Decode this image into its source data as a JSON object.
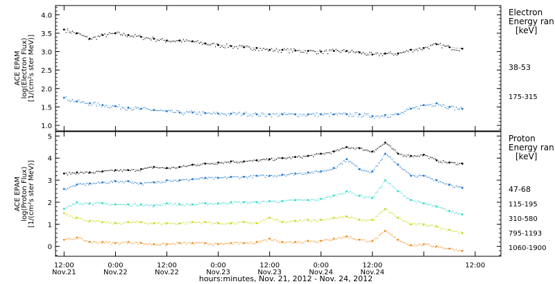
{
  "chart_data": [
    {
      "type": "scatter",
      "ylabel_lines": [
        "ACE EPAM",
        "log(Electron Flux)",
        "[1/(cm²s ster MeV)]"
      ],
      "ylim": [
        0.85,
        4.25
      ],
      "yticks": [
        "1.0",
        "1.5",
        "2.0",
        "2.5",
        "3.0",
        "3.5",
        "4.0"
      ],
      "ytick_values": [
        1.0,
        1.5,
        2.0,
        2.5,
        3.0,
        3.5,
        4.0
      ],
      "legend_title": [
        "Electron",
        "Energy ran",
        "[keV]"
      ],
      "series": [
        {
          "name": "38-53",
          "color": "#000000",
          "x": [
            0,
            3,
            6,
            9,
            12,
            15,
            18,
            21,
            24,
            27,
            30,
            33,
            36,
            39,
            42,
            45,
            48,
            51,
            54,
            57,
            60,
            63,
            66,
            69,
            72,
            75,
            78,
            81,
            84,
            87,
            90,
            93
          ],
          "values": [
            3.6,
            3.5,
            3.35,
            3.45,
            3.5,
            3.45,
            3.4,
            3.35,
            3.3,
            3.3,
            3.28,
            3.22,
            3.18,
            3.15,
            3.12,
            3.1,
            3.05,
            3.05,
            3.03,
            3.02,
            3.0,
            3.02,
            3.02,
            2.98,
            2.92,
            2.95,
            2.95,
            3.05,
            3.1,
            3.2,
            3.12,
            3.08
          ]
        },
        {
          "name": "175-315",
          "color": "#1a73c8",
          "x": [
            0,
            3,
            6,
            9,
            12,
            15,
            18,
            21,
            24,
            27,
            30,
            33,
            36,
            39,
            42,
            45,
            48,
            51,
            54,
            57,
            60,
            63,
            66,
            69,
            72,
            75,
            78,
            81,
            84,
            87,
            90,
            93
          ],
          "values": [
            1.75,
            1.65,
            1.6,
            1.55,
            1.52,
            1.48,
            1.45,
            1.42,
            1.38,
            1.35,
            1.35,
            1.33,
            1.32,
            1.32,
            1.32,
            1.3,
            1.3,
            1.3,
            1.3,
            1.3,
            1.3,
            1.3,
            1.3,
            1.3,
            1.25,
            1.28,
            1.3,
            1.45,
            1.55,
            1.6,
            1.5,
            1.45
          ]
        }
      ]
    },
    {
      "type": "scatter",
      "ylabel_lines": [
        "ACE EPAM",
        "log(Proton Flux)",
        "[1/(cm²s ster MeV)]"
      ],
      "ylim": [
        -0.45,
        5.2
      ],
      "yticks": [
        "0",
        "1",
        "2",
        "3",
        "4",
        "5"
      ],
      "ytick_values": [
        0,
        1,
        2,
        3,
        4,
        5
      ],
      "legend_title": [
        "Proton",
        "Energy ran",
        "[keV]"
      ],
      "series": [
        {
          "name": "47-68",
          "color": "#000000",
          "x": [
            0,
            3,
            6,
            9,
            12,
            15,
            18,
            21,
            24,
            27,
            30,
            33,
            36,
            39,
            42,
            45,
            48,
            51,
            54,
            57,
            60,
            63,
            66,
            69,
            72,
            75,
            78,
            81,
            84,
            87,
            90,
            93
          ],
          "values": [
            3.3,
            3.35,
            3.35,
            3.4,
            3.45,
            3.45,
            3.5,
            3.6,
            3.55,
            3.6,
            3.7,
            3.75,
            3.8,
            3.85,
            3.85,
            3.9,
            3.95,
            4.0,
            4.05,
            4.1,
            4.2,
            4.3,
            4.5,
            4.45,
            4.3,
            4.7,
            4.2,
            4.1,
            4.15,
            3.9,
            3.8,
            3.75
          ]
        },
        {
          "name": "115-195",
          "color": "#1a73c8",
          "x": [
            0,
            3,
            6,
            9,
            12,
            15,
            18,
            21,
            24,
            27,
            30,
            33,
            36,
            39,
            42,
            45,
            48,
            51,
            54,
            57,
            60,
            63,
            66,
            69,
            72,
            75,
            78,
            81,
            84,
            87,
            90,
            93
          ],
          "values": [
            2.6,
            2.8,
            2.85,
            2.9,
            2.95,
            2.95,
            2.85,
            2.9,
            3.0,
            3.0,
            3.05,
            3.1,
            3.1,
            3.15,
            3.15,
            3.2,
            3.2,
            3.25,
            3.3,
            3.35,
            3.4,
            3.55,
            3.95,
            3.5,
            3.4,
            4.2,
            3.7,
            3.2,
            3.2,
            3.0,
            2.8,
            2.65
          ]
        },
        {
          "name": "310-580",
          "color": "#2ad9c8",
          "x": [
            0,
            3,
            6,
            9,
            12,
            15,
            18,
            21,
            24,
            27,
            30,
            33,
            36,
            39,
            42,
            45,
            48,
            51,
            54,
            57,
            60,
            63,
            66,
            69,
            72,
            75,
            78,
            81,
            84,
            87,
            90,
            93
          ],
          "values": [
            1.7,
            2.0,
            1.95,
            1.95,
            1.9,
            1.9,
            1.9,
            1.85,
            1.95,
            1.9,
            1.9,
            1.95,
            1.95,
            2.0,
            2.0,
            2.0,
            2.05,
            2.05,
            2.1,
            2.1,
            2.15,
            2.3,
            2.5,
            2.3,
            2.2,
            3.0,
            2.5,
            2.1,
            1.95,
            1.8,
            1.6,
            1.45
          ]
        },
        {
          "name": "795-1193",
          "color": "#c6d812",
          "x": [
            0,
            3,
            6,
            9,
            12,
            15,
            18,
            21,
            24,
            27,
            30,
            33,
            36,
            39,
            42,
            45,
            48,
            51,
            54,
            57,
            60,
            63,
            66,
            69,
            72,
            75,
            78,
            81,
            84,
            87,
            90,
            93
          ],
          "values": [
            1.5,
            1.3,
            1.15,
            1.1,
            1.05,
            1.1,
            1.1,
            1.05,
            1.05,
            1.05,
            1.1,
            1.1,
            1.05,
            1.05,
            1.1,
            1.05,
            1.3,
            1.1,
            1.15,
            1.2,
            1.2,
            1.3,
            1.35,
            1.2,
            1.2,
            1.7,
            1.3,
            1.0,
            1.0,
            0.9,
            0.75,
            0.6
          ]
        },
        {
          "name": "1060-1900",
          "color": "#f08c1a",
          "x": [
            0,
            3,
            6,
            9,
            12,
            15,
            18,
            21,
            24,
            27,
            30,
            33,
            36,
            39,
            42,
            45,
            48,
            51,
            54,
            57,
            60,
            63,
            66,
            69,
            72,
            75,
            78,
            81,
            84,
            87,
            90,
            93
          ],
          "values": [
            0.3,
            0.4,
            0.2,
            0.2,
            0.15,
            0.2,
            0.15,
            0.1,
            0.1,
            0.15,
            0.15,
            0.15,
            0.1,
            0.15,
            0.15,
            0.2,
            0.35,
            0.2,
            0.2,
            0.25,
            0.25,
            0.35,
            0.45,
            0.3,
            0.25,
            0.7,
            0.3,
            0.05,
            0.1,
            0.0,
            -0.1,
            -0.2
          ]
        }
      ]
    }
  ],
  "x_axis": {
    "xlim": [
      -2,
      102
    ],
    "ticks": [
      {
        "x": 0,
        "time": "12:00",
        "day": "Nov.21"
      },
      {
        "x": 12,
        "time": "0:00",
        "day": "Nov.22"
      },
      {
        "x": 24,
        "time": "12:00",
        "day": "Nov.22"
      },
      {
        "x": 36,
        "time": "0:00",
        "day": "Nov.23"
      },
      {
        "x": 48,
        "time": "12:00",
        "day": "Nov.23"
      },
      {
        "x": 60,
        "time": "0:00",
        "day": "Nov.24"
      },
      {
        "x": 72,
        "time": "12:00",
        "day": "Nov.24"
      },
      {
        "x": 84,
        "time": "",
        "day": ""
      },
      {
        "x": 96,
        "time": "12:00",
        "day": ""
      }
    ],
    "label": "hours:minutes, Nov. 21, 2012 - Nov. 24, 2012"
  }
}
